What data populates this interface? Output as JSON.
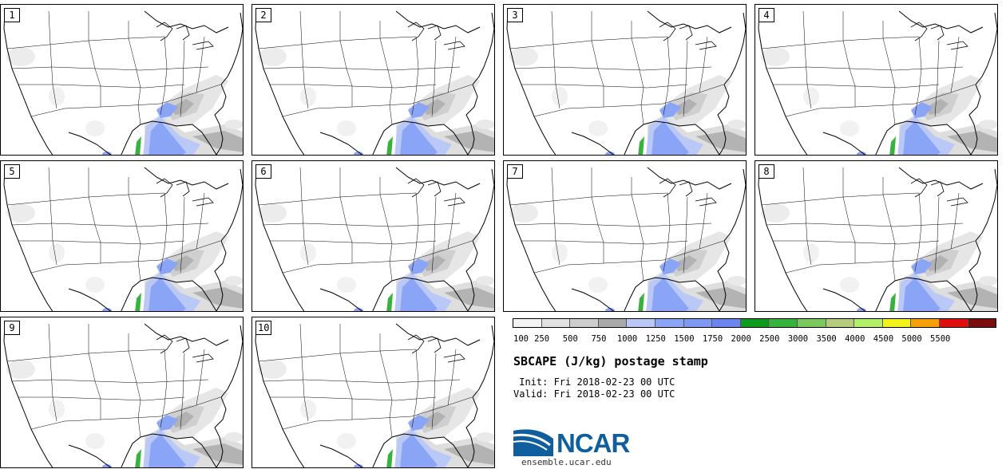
{
  "panels": [
    {
      "label": "1"
    },
    {
      "label": "2"
    },
    {
      "label": "3"
    },
    {
      "label": "4"
    },
    {
      "label": "5"
    },
    {
      "label": "6"
    },
    {
      "label": "7"
    },
    {
      "label": "8"
    },
    {
      "label": "9"
    },
    {
      "label": "10"
    }
  ],
  "colorbar": {
    "colors": [
      "#f4f4f4",
      "#e2e2e2",
      "#cdcdcd",
      "#a9a9a9",
      "#b9c8f6",
      "#8aa5f5",
      "#7d99f2",
      "#6a85ee",
      "#0c9a1f",
      "#36b33c",
      "#79c95f",
      "#b4cc7c",
      "#b2f069",
      "#f3f31c",
      "#f59f0b",
      "#e00f0f",
      "#7a0d0d"
    ],
    "ticks": [
      "100",
      "250",
      "500",
      "750",
      "1000",
      "1250",
      "1500",
      "1750",
      "2000",
      "2500",
      "3000",
      "3500",
      "4000",
      "4500",
      "5000",
      "5500"
    ]
  },
  "title": "SBCAPE (J/kg) postage stamp",
  "init_line": " Init: Fri 2018-02-23 00 UTC",
  "valid_line": "Valid: Fri 2018-02-23 00 UTC",
  "logo": {
    "text": "NCAR",
    "url": "ensemble.ucar.edu",
    "color": "#0f5f9e"
  }
}
